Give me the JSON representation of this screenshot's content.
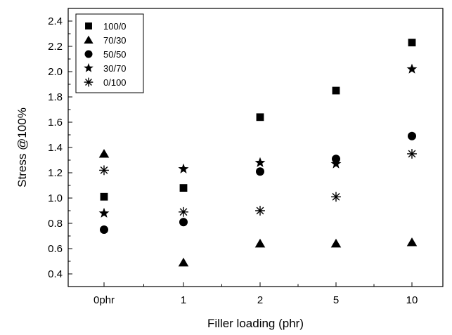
{
  "chart_data": {
    "type": "scatter",
    "categories": [
      "0phr",
      "1",
      "2",
      "5",
      "10"
    ],
    "xlabel": "Filler loading (phr)",
    "ylabel": "Stress @100%",
    "ylim": [
      0.3,
      2.5
    ],
    "yticks": [
      0.4,
      0.6,
      0.8,
      1.0,
      1.2,
      1.4,
      1.6,
      1.8,
      2.0,
      2.2,
      2.4
    ],
    "grid": false,
    "legend_position": "top-left",
    "series": [
      {
        "name": "100/0",
        "marker": "square",
        "values": [
          1.01,
          1.08,
          1.64,
          1.85,
          2.23
        ]
      },
      {
        "name": "70/30",
        "marker": "triangle",
        "values": [
          1.35,
          0.49,
          0.64,
          0.64,
          0.65
        ]
      },
      {
        "name": "50/50",
        "marker": "circle",
        "values": [
          0.75,
          0.81,
          1.21,
          1.31,
          1.49
        ]
      },
      {
        "name": "30/70",
        "marker": "star",
        "values": [
          0.88,
          1.23,
          1.28,
          1.27,
          2.02
        ]
      },
      {
        "name": "0/100",
        "marker": "asterisk",
        "values": [
          1.22,
          0.89,
          0.9,
          1.01,
          1.35
        ]
      }
    ]
  }
}
